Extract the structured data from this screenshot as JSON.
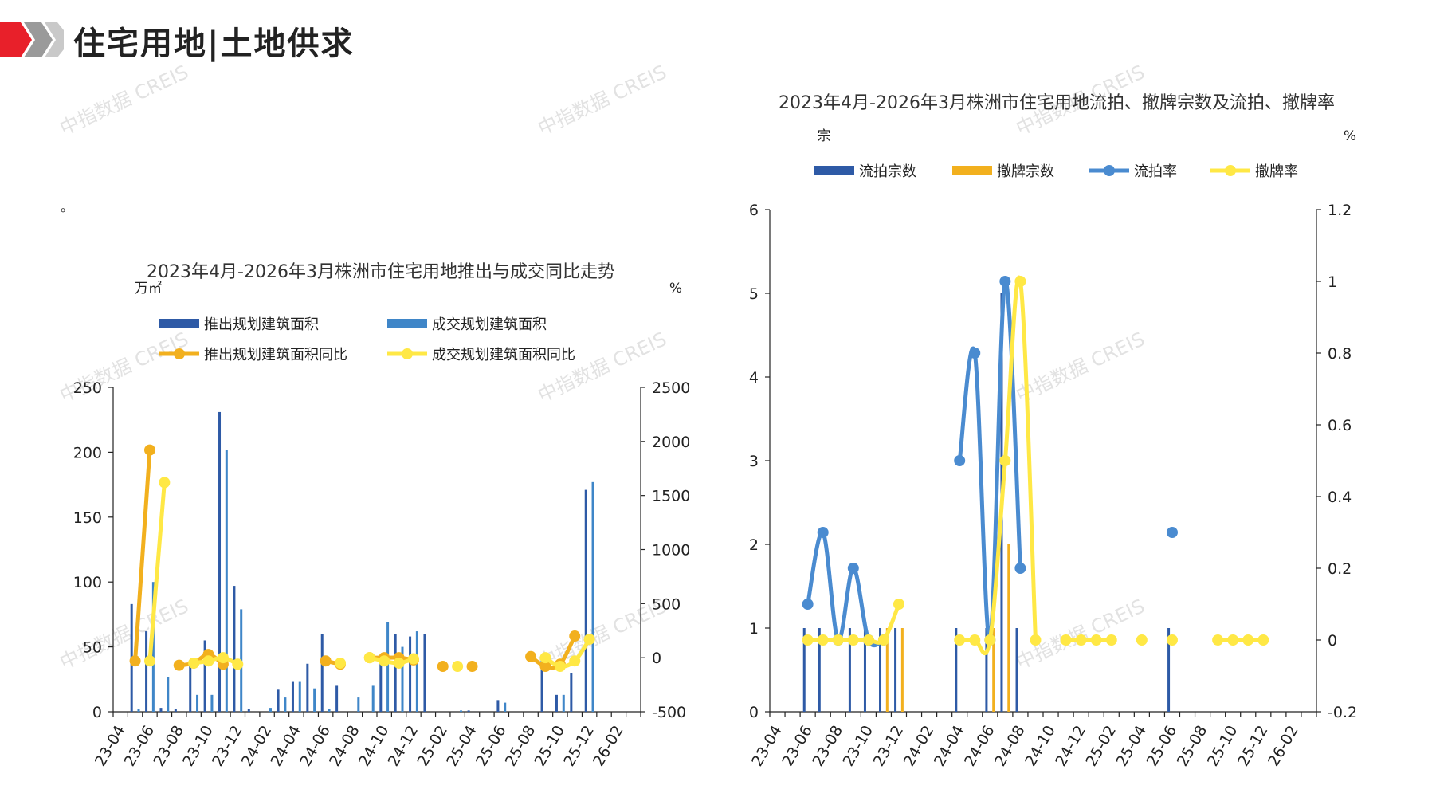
{
  "page": {
    "title": "住宅用地|土地供求",
    "note_mark": "。",
    "watermark_text": "中指数据 CREIS"
  },
  "colors": {
    "brand_red": "#e8202a",
    "brand_gray": "#9a9a9a",
    "dark_blue": "#2e5aa6",
    "light_blue": "#3f86c8",
    "orange": "#f2b01e",
    "yellow": "#ffe845",
    "mid_blue": "#4a8bd0"
  },
  "chart_data": [
    {
      "type": "bar",
      "title": "2023年4月-2026年3月株洲市住宅用地推出与成交同比走势",
      "y_unit_left": "万㎡",
      "y_unit_right": "%",
      "ylim_left": [
        0,
        250
      ],
      "ylim_right": [
        -500,
        2500
      ],
      "yticks_left": [
        "0",
        "50",
        "100",
        "150",
        "200",
        "250"
      ],
      "yticks_right": [
        "-500",
        "0",
        "500",
        "1000",
        "1500",
        "2000",
        "2500"
      ],
      "x_tick_labels": [
        "23-04",
        "23-06",
        "23-08",
        "23-10",
        "23-12",
        "24-02",
        "24-04",
        "24-06",
        "24-08",
        "24-10",
        "24-12",
        "25-02",
        "25-04",
        "25-06",
        "25-08",
        "25-10",
        "25-12",
        "26-02"
      ],
      "categories": [
        "23-04",
        "23-05",
        "23-06",
        "23-07",
        "23-08",
        "23-09",
        "23-10",
        "23-11",
        "23-12",
        "24-01",
        "24-02",
        "24-03",
        "24-04",
        "24-05",
        "24-06",
        "24-07",
        "24-08",
        "24-09",
        "24-10",
        "24-11",
        "24-12",
        "25-01",
        "25-02",
        "25-03",
        "25-04",
        "25-05",
        "25-06",
        "25-07",
        "25-08",
        "25-09",
        "25-10",
        "25-11",
        "25-12",
        "26-01",
        "26-02",
        "26-03"
      ],
      "legend": [
        "推出规划建筑面积",
        "成交规划建筑面积",
        "推出规划建筑面积同比",
        "成交规划建筑面积同比"
      ],
      "series": [
        {
          "name": "推出规划建筑面积",
          "axis": "left",
          "kind": "bar",
          "color": "#2e5aa6",
          "values": [
            0,
            83,
            62,
            3,
            2,
            38,
            55,
            231,
            97,
            2,
            0,
            17,
            23,
            37,
            60,
            20,
            0,
            0,
            40,
            60,
            58,
            60,
            0,
            0,
            1,
            0,
            9,
            0,
            0,
            41,
            13,
            30,
            171,
            0,
            0,
            0
          ]
        },
        {
          "name": "成交规划建筑面积",
          "axis": "left",
          "kind": "bar",
          "color": "#3f86c8",
          "values": [
            0,
            2,
            100,
            27,
            0,
            13,
            13,
            202,
            79,
            0,
            3,
            11,
            23,
            18,
            2,
            0,
            11,
            20,
            69,
            50,
            62,
            0,
            0,
            1,
            0,
            0,
            7,
            0,
            0,
            0,
            13,
            0,
            177,
            0,
            0,
            0
          ]
        },
        {
          "name": "推出规划建筑面积同比",
          "axis": "right",
          "kind": "line",
          "color": "#f2b01e",
          "values": [
            null,
            -30,
            1920,
            null,
            -70,
            -50,
            30,
            -60,
            null,
            null,
            null,
            null,
            null,
            null,
            -30,
            -60,
            null,
            0,
            0,
            0,
            -20,
            null,
            -80,
            null,
            -80,
            null,
            null,
            null,
            10,
            -80,
            -60,
            200,
            null,
            null,
            null,
            null
          ]
        },
        {
          "name": "成交规划建筑面积同比",
          "axis": "right",
          "kind": "line",
          "color": "#ffe845",
          "values": [
            null,
            null,
            -30,
            1620,
            null,
            -50,
            -30,
            0,
            -60,
            null,
            null,
            null,
            null,
            null,
            null,
            -50,
            null,
            0,
            -30,
            -50,
            -10,
            null,
            null,
            -80,
            null,
            null,
            null,
            null,
            null,
            0,
            -80,
            -30,
            170,
            null,
            null,
            null
          ]
        }
      ]
    },
    {
      "type": "bar",
      "title": "2023年4月-2026年3月株洲市住宅用地流拍、撤牌宗数及流拍、撤牌率",
      "y_unit_left": "宗",
      "y_unit_right": "%",
      "ylim_left": [
        0,
        6
      ],
      "ylim_right": [
        -0.2,
        1.2
      ],
      "yticks_left": [
        "0",
        "1",
        "2",
        "3",
        "4",
        "5",
        "6"
      ],
      "yticks_right": [
        "-0.2",
        "0",
        "0.2",
        "0.4",
        "0.6",
        "0.8",
        "1",
        "1.2"
      ],
      "x_tick_labels": [
        "23-04",
        "23-06",
        "23-08",
        "23-10",
        "23-12",
        "24-02",
        "24-04",
        "24-06",
        "24-08",
        "24-10",
        "24-12",
        "25-02",
        "25-04",
        "25-06",
        "25-08",
        "25-10",
        "25-12",
        "26-02"
      ],
      "categories": [
        "23-04",
        "23-05",
        "23-06",
        "23-07",
        "23-08",
        "23-09",
        "23-10",
        "23-11",
        "23-12",
        "24-01",
        "24-02",
        "24-03",
        "24-04",
        "24-05",
        "24-06",
        "24-07",
        "24-08",
        "24-09",
        "24-10",
        "24-11",
        "24-12",
        "25-01",
        "25-02",
        "25-03",
        "25-04",
        "25-05",
        "25-06",
        "25-07",
        "25-08",
        "25-09",
        "25-10",
        "25-11",
        "25-12",
        "26-01",
        "26-02",
        "26-03"
      ],
      "legend": [
        "流拍宗数",
        "撤牌宗数",
        "流拍率",
        "撤牌率"
      ],
      "series": [
        {
          "name": "流拍宗数",
          "axis": "left",
          "kind": "bar",
          "color": "#2e5aa6",
          "values": [
            0,
            0,
            1,
            1,
            0,
            1,
            1,
            1,
            1,
            0,
            0,
            0,
            1,
            0,
            1,
            5,
            1,
            0,
            0,
            0,
            0,
            0,
            0,
            0,
            0,
            0,
            1,
            0,
            0,
            0,
            0,
            0,
            0,
            0,
            0,
            0
          ]
        },
        {
          "name": "撤牌宗数",
          "axis": "left",
          "kind": "bar",
          "color": "#f2b01e",
          "values": [
            0,
            0,
            0,
            0,
            0,
            0,
            0,
            1,
            1,
            0,
            0,
            0,
            0,
            0,
            1,
            2,
            0,
            0,
            0,
            0,
            0,
            0,
            0,
            0,
            0,
            0,
            0,
            0,
            0,
            0,
            0,
            0,
            0,
            0,
            0,
            0
          ]
        },
        {
          "name": "流拍率",
          "axis": "right",
          "kind": "line",
          "color": "#4a8bd0",
          "values": [
            null,
            null,
            0.1,
            0.3,
            0,
            0.2,
            0,
            0,
            null,
            null,
            null,
            null,
            0.5,
            0.8,
            0,
            1,
            0.2,
            null,
            null,
            null,
            null,
            null,
            null,
            null,
            null,
            null,
            0.3,
            null,
            null,
            null,
            null,
            null,
            null,
            null,
            null,
            null
          ]
        },
        {
          "name": "撤牌率",
          "axis": "right",
          "kind": "line",
          "color": "#ffe845",
          "values": [
            null,
            null,
            0,
            0,
            0,
            0,
            0,
            0,
            0.1,
            null,
            null,
            null,
            0,
            0,
            0,
            0.5,
            1,
            0,
            null,
            0,
            0,
            0,
            0,
            null,
            0,
            null,
            0,
            null,
            null,
            0,
            0,
            0,
            0,
            null,
            null,
            null
          ]
        }
      ]
    }
  ]
}
